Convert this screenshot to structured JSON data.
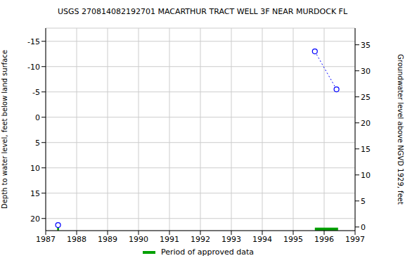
{
  "chart_data": {
    "type": "line",
    "title": "USGS 270814082192701 MACARTHUR TRACT WELL 3F NEAR MURDOCK FL",
    "y_label": "Depth to water level, feet below land surface",
    "y2_label": "Groundwater level above NGVD 1929, feet",
    "xlim": [
      1987,
      1997
    ],
    "xticks": [
      1987,
      1988,
      1989,
      1990,
      1991,
      1992,
      1993,
      1994,
      1995,
      1996,
      1997
    ],
    "ylim": [
      -17.6,
      22.4
    ],
    "yticks": [
      -15,
      -10,
      -5,
      0,
      5,
      10,
      15,
      20
    ],
    "y2lim": [
      -0.7,
      38.2
    ],
    "y2ticks": [
      0,
      5,
      10,
      15,
      20,
      25,
      30,
      35
    ],
    "grid": true,
    "legend": "bottom",
    "series": [
      {
        "type": "scatter",
        "color": "#0000ff",
        "marker": "circle",
        "x": [
          1987.4
        ],
        "values": [
          21.3
        ]
      },
      {
        "type": "line",
        "color": "#0000ff",
        "marker": "circle",
        "line_style": "dotted",
        "x": [
          1995.7,
          1996.4
        ],
        "values": [
          -13.0,
          -5.5
        ]
      },
      {
        "name": "Period of approved data",
        "type": "period",
        "color": "#00a000",
        "start": [
          1987.37,
          1995.7
        ],
        "end": [
          1987.43,
          1996.45
        ]
      }
    ]
  }
}
